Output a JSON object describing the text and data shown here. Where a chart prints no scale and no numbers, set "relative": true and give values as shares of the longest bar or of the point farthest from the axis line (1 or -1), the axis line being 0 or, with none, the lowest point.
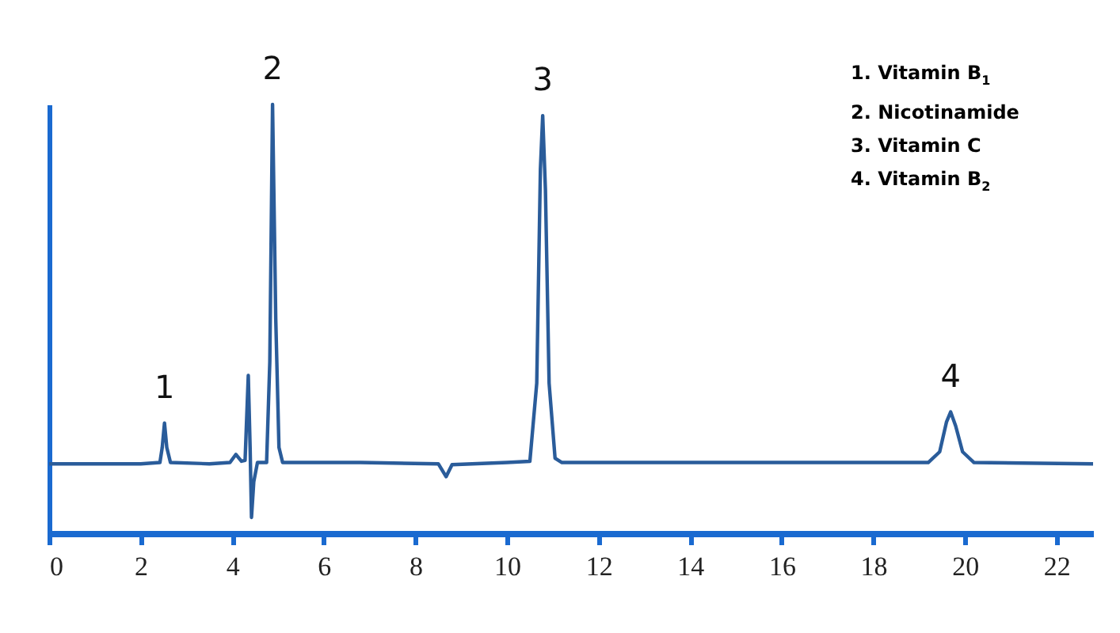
{
  "chart_data": {
    "type": "line",
    "relative": true,
    "grid": false,
    "marker": "none",
    "line_style": "solid",
    "x": [
      0,
      2.0,
      2.42,
      2.47,
      2.52,
      2.57,
      2.65,
      3.5,
      3.95,
      4.08,
      4.2,
      4.28,
      4.35,
      4.39,
      4.42,
      4.47,
      4.55,
      4.75,
      4.82,
      4.88,
      4.95,
      5.02,
      5.1,
      6.8,
      8.5,
      8.67,
      8.8,
      10.0,
      10.5,
      10.65,
      10.73,
      10.78,
      10.84,
      10.92,
      11.05,
      11.2,
      19.2,
      19.45,
      19.6,
      19.69,
      19.8,
      19.95,
      20.2,
      22.8
    ],
    "series": [
      {
        "color": "#2a5c9a",
        "values": [
          0.162,
          0.162,
          0.165,
          0.2,
          0.257,
          0.2,
          0.165,
          0.162,
          0.165,
          0.184,
          0.168,
          0.17,
          0.368,
          0.2,
          0.037,
          0.12,
          0.165,
          0.165,
          0.4,
          1,
          0.5,
          0.2,
          0.165,
          0.165,
          0.162,
          0.132,
          0.16,
          0.165,
          0.168,
          0.35,
          0.85,
          0.974,
          0.8,
          0.35,
          0.175,
          0.165,
          0.165,
          0.19,
          0.26,
          0.283,
          0.25,
          0.19,
          0.165,
          0.162
        ]
      }
    ],
    "xlim": [
      0,
      22.8
    ],
    "xticks": [
      0,
      2,
      4,
      6,
      8,
      10,
      12,
      14,
      16,
      18,
      20,
      22
    ],
    "annotations": [
      {
        "text": "1",
        "x": 2.52,
        "y": 0.257
      },
      {
        "text": "2",
        "x": 4.88,
        "y": 1
      },
      {
        "text": "3",
        "x": 10.78,
        "y": 0.974
      },
      {
        "text": "4",
        "x": 19.69,
        "y": 0.283
      },
      "1. Vitamin B$_{1}$",
      "2. Nicotinamide",
      "3. Vitamin C",
      "4. Vitamin B$_{2}$"
    ]
  }
}
